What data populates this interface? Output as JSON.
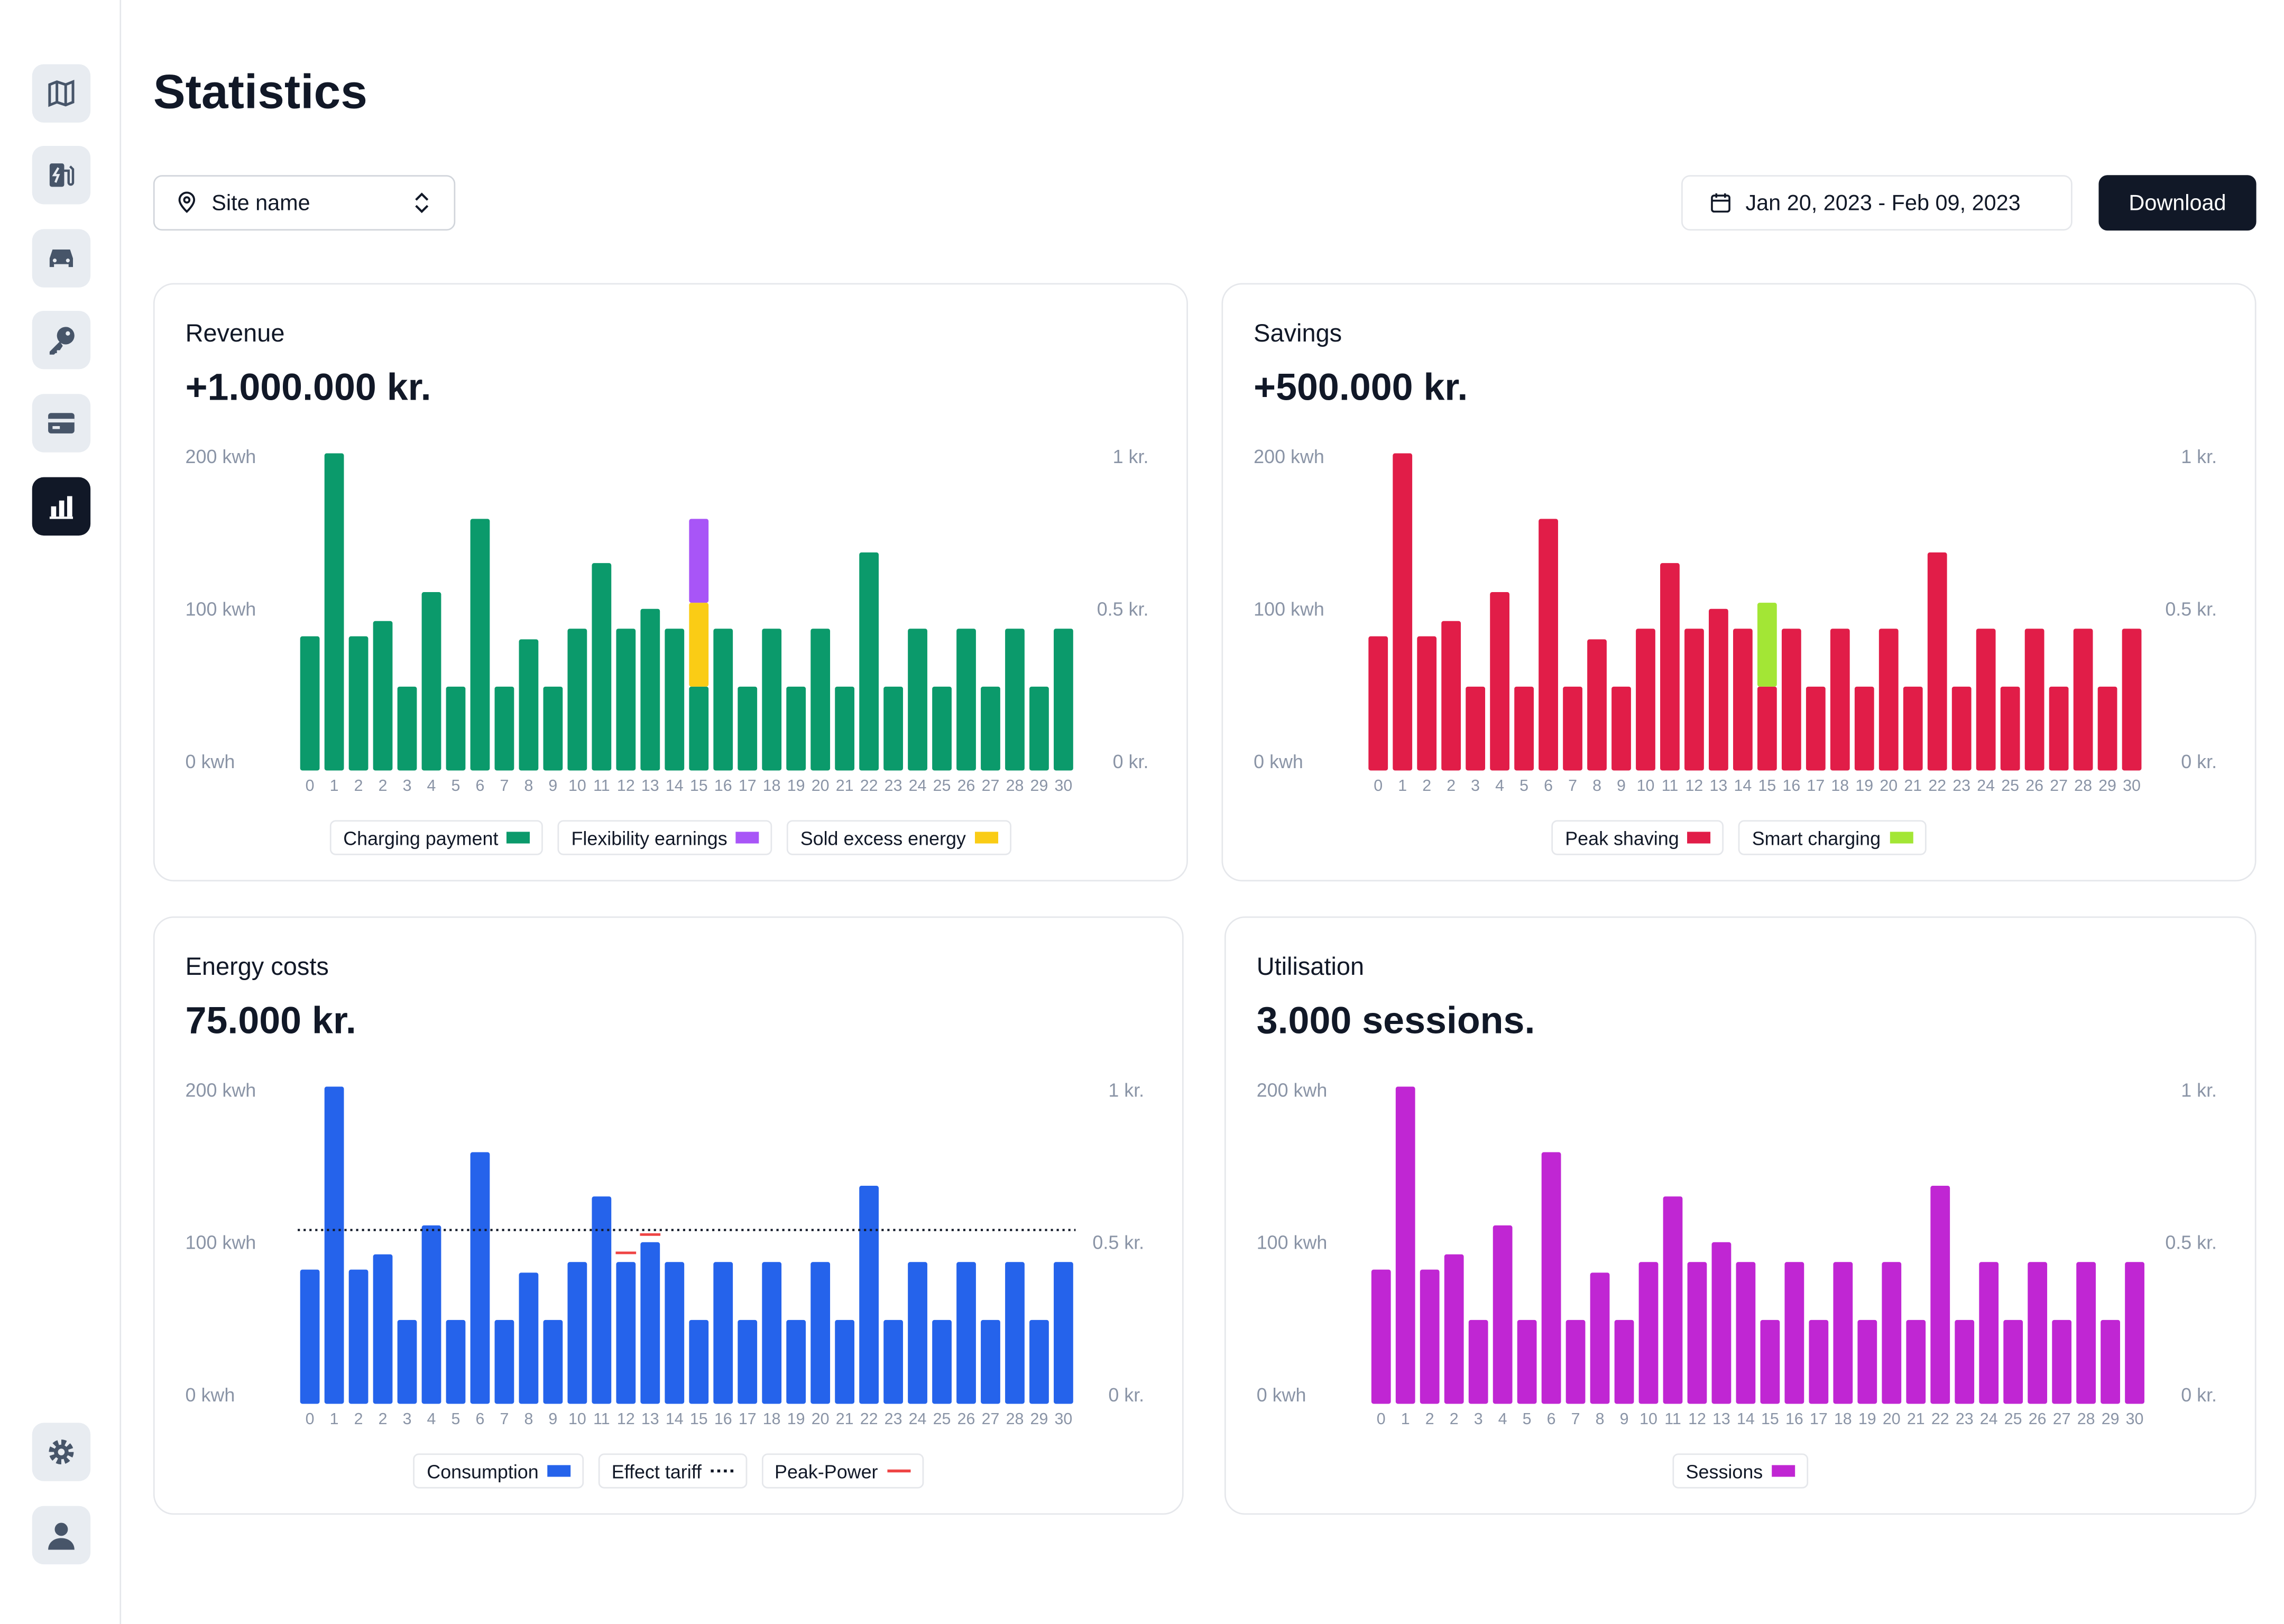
{
  "header": {
    "title": "Statistics",
    "site_selector": "Site name",
    "date_range": "Jan 20, 2023 - Feb 09, 2023",
    "download": "Download"
  },
  "chart_data": [
    {
      "type": "bar",
      "title": "Revenue",
      "headline": "+1.000.000 kr.",
      "categories": [
        "0",
        "1",
        "2",
        "2",
        "3",
        "4",
        "5",
        "6",
        "7",
        "8",
        "9",
        "10",
        "11",
        "12",
        "13",
        "14",
        "15",
        "16",
        "17",
        "18",
        "19",
        "20",
        "21",
        "22",
        "23",
        "24",
        "25",
        "26",
        "27",
        "28",
        "29",
        "30"
      ],
      "series": [
        {
          "name": "Charging payment",
          "color": "#0b9a6b",
          "values": [
            88,
            208,
            88,
            98,
            55,
            117,
            55,
            165,
            55,
            86,
            55,
            93,
            136,
            93,
            106,
            93,
            55,
            93,
            55,
            93,
            55,
            93,
            55,
            143,
            55,
            93,
            55,
            93,
            55,
            93,
            55,
            93
          ]
        },
        {
          "name": "Flexibility earnings",
          "color": "#a855f7",
          "values": [
            0,
            0,
            0,
            0,
            0,
            0,
            0,
            0,
            0,
            0,
            0,
            0,
            0,
            0,
            0,
            0,
            55,
            0,
            0,
            0,
            0,
            0,
            0,
            0,
            0,
            0,
            0,
            0,
            0,
            0,
            0,
            0
          ]
        },
        {
          "name": "Sold excess energy",
          "color": "#facc15",
          "values": [
            0,
            0,
            0,
            0,
            0,
            0,
            0,
            0,
            0,
            0,
            0,
            0,
            0,
            0,
            0,
            0,
            55,
            0,
            0,
            0,
            0,
            0,
            0,
            0,
            0,
            0,
            0,
            0,
            0,
            0,
            0,
            0
          ]
        }
      ],
      "ylim": [
        0,
        200
      ],
      "yticks": [
        {
          "value": 0,
          "label": "0 kwh"
        },
        {
          "value": 100,
          "label": "100 kwh"
        },
        {
          "value": 200,
          "label": "200 kwh"
        }
      ],
      "y2lim": [
        0,
        1
      ],
      "y2ticks": [
        {
          "value": 0,
          "label": "0 kr."
        },
        {
          "value": 0.5,
          "label": "0.5 kr."
        },
        {
          "value": 1,
          "label": "1 kr."
        }
      ]
    },
    {
      "type": "bar",
      "title": "Savings",
      "headline": "+500.000 kr.",
      "categories": [
        "0",
        "1",
        "2",
        "2",
        "3",
        "4",
        "5",
        "6",
        "7",
        "8",
        "9",
        "10",
        "11",
        "12",
        "13",
        "14",
        "15",
        "16",
        "17",
        "18",
        "19",
        "20",
        "21",
        "22",
        "23",
        "24",
        "25",
        "26",
        "27",
        "28",
        "29",
        "30"
      ],
      "series": [
        {
          "name": "Peak shaving",
          "color": "#e11d48",
          "values": [
            88,
            208,
            88,
            98,
            55,
            117,
            55,
            165,
            55,
            86,
            55,
            93,
            136,
            93,
            106,
            93,
            55,
            93,
            55,
            93,
            55,
            93,
            55,
            143,
            55,
            93,
            55,
            93,
            55,
            93,
            55,
            93
          ]
        },
        {
          "name": "Smart charging",
          "color": "#a3e635",
          "values": [
            0,
            0,
            0,
            0,
            0,
            0,
            0,
            0,
            0,
            0,
            0,
            0,
            0,
            0,
            0,
            0,
            55,
            0,
            0,
            0,
            0,
            0,
            0,
            0,
            0,
            0,
            0,
            0,
            0,
            0,
            0,
            0
          ]
        }
      ],
      "ylim": [
        0,
        200
      ],
      "yticks": [
        {
          "value": 0,
          "label": "0 kwh"
        },
        {
          "value": 100,
          "label": "100 kwh"
        },
        {
          "value": 200,
          "label": "200 kwh"
        }
      ],
      "y2lim": [
        0,
        1
      ],
      "y2ticks": [
        {
          "value": 0,
          "label": "0 kr."
        },
        {
          "value": 0.5,
          "label": "0.5 kr."
        },
        {
          "value": 1,
          "label": "1 kr."
        }
      ]
    },
    {
      "type": "bar",
      "title": "Energy costs",
      "headline": "75.000 kr.",
      "categories": [
        "0",
        "1",
        "2",
        "2",
        "3",
        "4",
        "5",
        "6",
        "7",
        "8",
        "9",
        "10",
        "11",
        "12",
        "13",
        "14",
        "15",
        "16",
        "17",
        "18",
        "19",
        "20",
        "21",
        "22",
        "23",
        "24",
        "25",
        "26",
        "27",
        "28",
        "29",
        "30"
      ],
      "series": [
        {
          "name": "Consumption",
          "color": "#2563eb",
          "values": [
            88,
            208,
            88,
            98,
            55,
            117,
            55,
            165,
            55,
            86,
            55,
            93,
            136,
            93,
            106,
            93,
            55,
            93,
            55,
            93,
            55,
            93,
            55,
            143,
            55,
            93,
            55,
            93,
            55,
            93,
            55,
            93
          ]
        },
        {
          "name": "Effect tariff",
          "color": "#111827",
          "line": "dotted",
          "value": 114
        },
        {
          "name": "Peak-Power",
          "color": "#ef4444",
          "line": "tick",
          "values": [
            null,
            null,
            null,
            null,
            null,
            null,
            null,
            null,
            null,
            null,
            null,
            null,
            null,
            99,
            111,
            null,
            null,
            null,
            null,
            null,
            null,
            null,
            null,
            null,
            null,
            null,
            null,
            null,
            null,
            null,
            null,
            null
          ]
        }
      ],
      "ylim": [
        0,
        200
      ],
      "yticks": [
        {
          "value": 0,
          "label": "0 kwh"
        },
        {
          "value": 100,
          "label": "100 kwh"
        },
        {
          "value": 200,
          "label": "200 kwh"
        }
      ],
      "y2lim": [
        0,
        1
      ],
      "y2ticks": [
        {
          "value": 0,
          "label": "0 kr."
        },
        {
          "value": 0.5,
          "label": "0.5 kr."
        },
        {
          "value": 1,
          "label": "1 kr."
        }
      ]
    },
    {
      "type": "bar",
      "title": "Utilisation",
      "headline": "3.000 sessions.",
      "categories": [
        "0",
        "1",
        "2",
        "2",
        "3",
        "4",
        "5",
        "6",
        "7",
        "8",
        "9",
        "10",
        "11",
        "12",
        "13",
        "14",
        "15",
        "16",
        "17",
        "18",
        "19",
        "20",
        "21",
        "22",
        "23",
        "24",
        "25",
        "26",
        "27",
        "28",
        "29",
        "30"
      ],
      "series": [
        {
          "name": "Sessions",
          "color": "#c026d3",
          "values": [
            88,
            208,
            88,
            98,
            55,
            117,
            55,
            165,
            55,
            86,
            55,
            93,
            136,
            93,
            106,
            93,
            55,
            93,
            55,
            93,
            55,
            93,
            55,
            143,
            55,
            93,
            55,
            93,
            55,
            93,
            55,
            93
          ]
        }
      ],
      "ylim": [
        0,
        200
      ],
      "yticks": [
        {
          "value": 0,
          "label": "0 kwh"
        },
        {
          "value": 100,
          "label": "100 kwh"
        },
        {
          "value": 200,
          "label": "200 kwh"
        }
      ],
      "y2lim": [
        0,
        1
      ],
      "y2ticks": [
        {
          "value": 0,
          "label": "0 kr."
        },
        {
          "value": 0.5,
          "label": "0.5 kr."
        },
        {
          "value": 1,
          "label": "1 kr."
        }
      ]
    }
  ]
}
